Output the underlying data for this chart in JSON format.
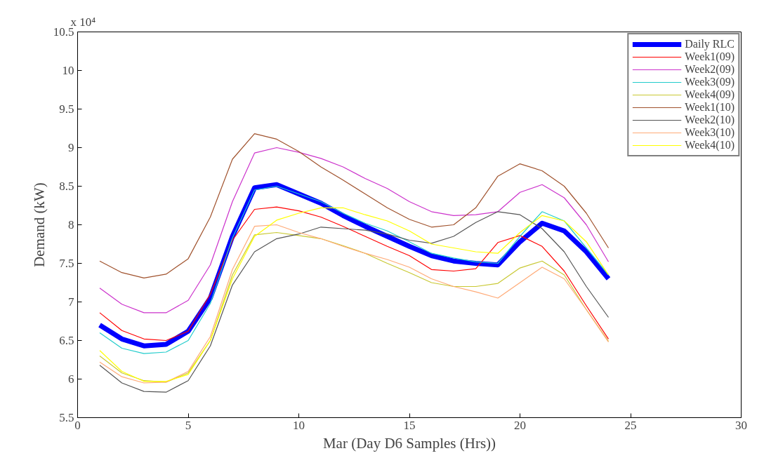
{
  "chart_data": {
    "type": "line",
    "xlabel": "Mar (Day D6 Samples (Hrs))",
    "ylabel": "Demand (kW)",
    "annotations": [
      "x 10⁴"
    ],
    "x": [
      1,
      2,
      3,
      4,
      5,
      6,
      7,
      8,
      9,
      10,
      11,
      12,
      13,
      14,
      15,
      16,
      17,
      18,
      19,
      20,
      21,
      22,
      23,
      24
    ],
    "xlim": [
      0,
      30
    ],
    "xticks": [
      0,
      5,
      10,
      15,
      20,
      25,
      30
    ],
    "ylim": [
      5.5,
      10.5
    ],
    "yticks": [
      5.5,
      6,
      6.5,
      7,
      7.5,
      8,
      8.5,
      9,
      9.5,
      10,
      10.5
    ],
    "grid": false,
    "legend": "top right",
    "line_style": "solid",
    "marker": "none",
    "series": [
      {
        "name": "Daily RLC",
        "color": "#0000ff",
        "values": [
          6.7,
          6.52,
          6.43,
          6.45,
          6.62,
          7.05,
          7.85,
          8.48,
          8.52,
          8.4,
          8.28,
          8.12,
          7.98,
          7.85,
          7.72,
          7.6,
          7.53,
          7.5,
          7.48,
          7.78,
          8.02,
          7.92,
          7.65,
          7.3
        ]
      },
      {
        "name": "Week1(09)",
        "color": "#ff0000",
        "values": [
          6.86,
          6.63,
          6.52,
          6.5,
          6.62,
          7.1,
          7.8,
          8.2,
          8.23,
          8.18,
          8.1,
          7.98,
          7.85,
          7.72,
          7.6,
          7.42,
          7.4,
          7.43,
          7.77,
          7.86,
          7.72,
          7.4,
          6.95,
          6.52
        ]
      },
      {
        "name": "Week2(09)",
        "color": "#cc33cc",
        "values": [
          7.18,
          6.97,
          6.86,
          6.86,
          7.02,
          7.48,
          8.3,
          8.93,
          9.0,
          8.94,
          8.86,
          8.75,
          8.6,
          8.47,
          8.3,
          8.17,
          8.12,
          8.13,
          8.17,
          8.42,
          8.52,
          8.35,
          8.0,
          7.52
        ]
      },
      {
        "name": "Week3(09)",
        "color": "#22cccc",
        "values": [
          6.6,
          6.4,
          6.33,
          6.35,
          6.5,
          6.98,
          7.83,
          8.45,
          8.5,
          8.4,
          8.3,
          8.15,
          8.02,
          7.92,
          7.78,
          7.63,
          7.57,
          7.52,
          7.5,
          7.85,
          8.17,
          8.05,
          7.7,
          7.35
        ]
      },
      {
        "name": "Week4(09)",
        "color": "#c8c832",
        "values": [
          6.3,
          6.08,
          5.98,
          5.96,
          6.08,
          6.5,
          7.35,
          7.87,
          7.9,
          7.86,
          7.82,
          7.73,
          7.63,
          7.5,
          7.38,
          7.25,
          7.2,
          7.2,
          7.24,
          7.44,
          7.53,
          7.35,
          6.9,
          6.49
        ]
      },
      {
        "name": "Week1(10)",
        "color": "#a0522d",
        "values": [
          7.53,
          7.38,
          7.31,
          7.36,
          7.56,
          8.1,
          8.85,
          9.18,
          9.11,
          8.95,
          8.75,
          8.58,
          8.4,
          8.22,
          8.07,
          7.97,
          8.0,
          8.22,
          8.63,
          8.79,
          8.7,
          8.5,
          8.15,
          7.7
        ]
      },
      {
        "name": "Week2(10)",
        "color": "#555555",
        "values": [
          6.18,
          5.95,
          5.84,
          5.83,
          5.98,
          6.43,
          7.22,
          7.65,
          7.82,
          7.88,
          7.97,
          7.95,
          7.93,
          7.88,
          7.8,
          7.76,
          7.85,
          8.03,
          8.17,
          8.13,
          7.95,
          7.65,
          7.2,
          6.8
        ]
      },
      {
        "name": "Week3(10)",
        "color": "#ffaa77",
        "values": [
          6.22,
          6.03,
          5.95,
          5.96,
          6.1,
          6.55,
          7.42,
          7.98,
          8.0,
          7.9,
          7.82,
          7.72,
          7.63,
          7.55,
          7.45,
          7.3,
          7.2,
          7.13,
          7.05,
          7.25,
          7.45,
          7.3,
          6.9,
          6.48
        ]
      },
      {
        "name": "Week4(10)",
        "color": "#ffff00",
        "values": [
          6.37,
          6.1,
          5.97,
          5.97,
          6.06,
          6.5,
          7.3,
          7.85,
          8.06,
          8.15,
          8.22,
          8.22,
          8.13,
          8.05,
          7.92,
          7.75,
          7.7,
          7.65,
          7.63,
          7.9,
          8.12,
          8.05,
          7.78,
          7.35
        ]
      }
    ]
  }
}
